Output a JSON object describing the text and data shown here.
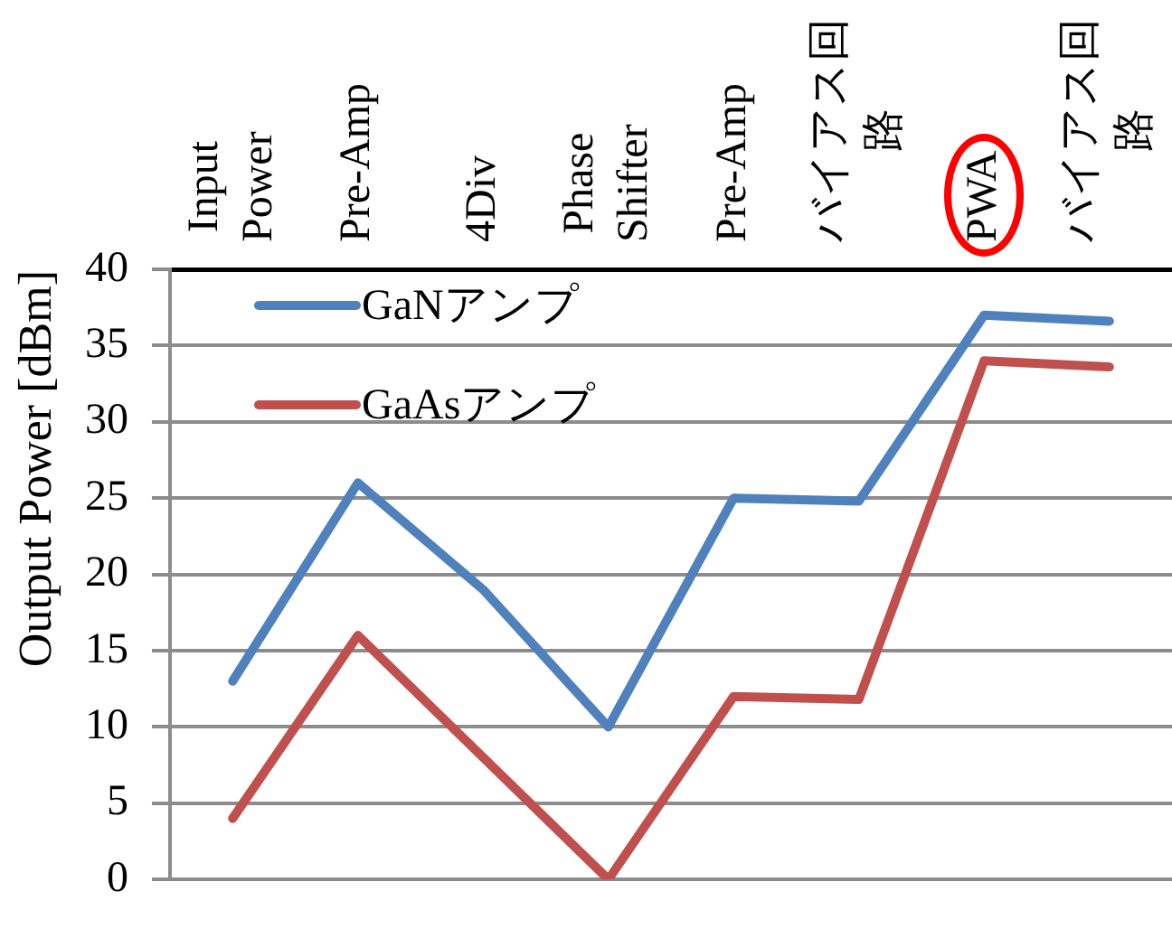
{
  "chart_data": {
    "type": "line",
    "categories": [
      "Input Power",
      "Pre-Amp",
      "4Div",
      "Phase Shifter",
      "Pre-Amp",
      "バイアス回路",
      "PWA",
      "バイアス回路"
    ],
    "ylabel": "Output Power [dBm]",
    "ylim": [
      0,
      40
    ],
    "yticks": [
      0,
      5,
      10,
      15,
      20,
      25,
      30,
      35,
      40
    ],
    "grid": "y",
    "legend": "top left",
    "marker": "none",
    "line_style": "solid",
    "series": [
      {
        "name": "GaNアンプ",
        "color": "#4f81bd",
        "values": [
          13,
          26,
          19,
          10,
          25,
          24.8,
          37,
          36.6
        ]
      },
      {
        "name": "GaAsアンプ",
        "color": "#c0504d",
        "values": [
          4,
          16,
          8,
          0,
          12,
          11.8,
          34,
          33.6
        ]
      }
    ]
  }
}
